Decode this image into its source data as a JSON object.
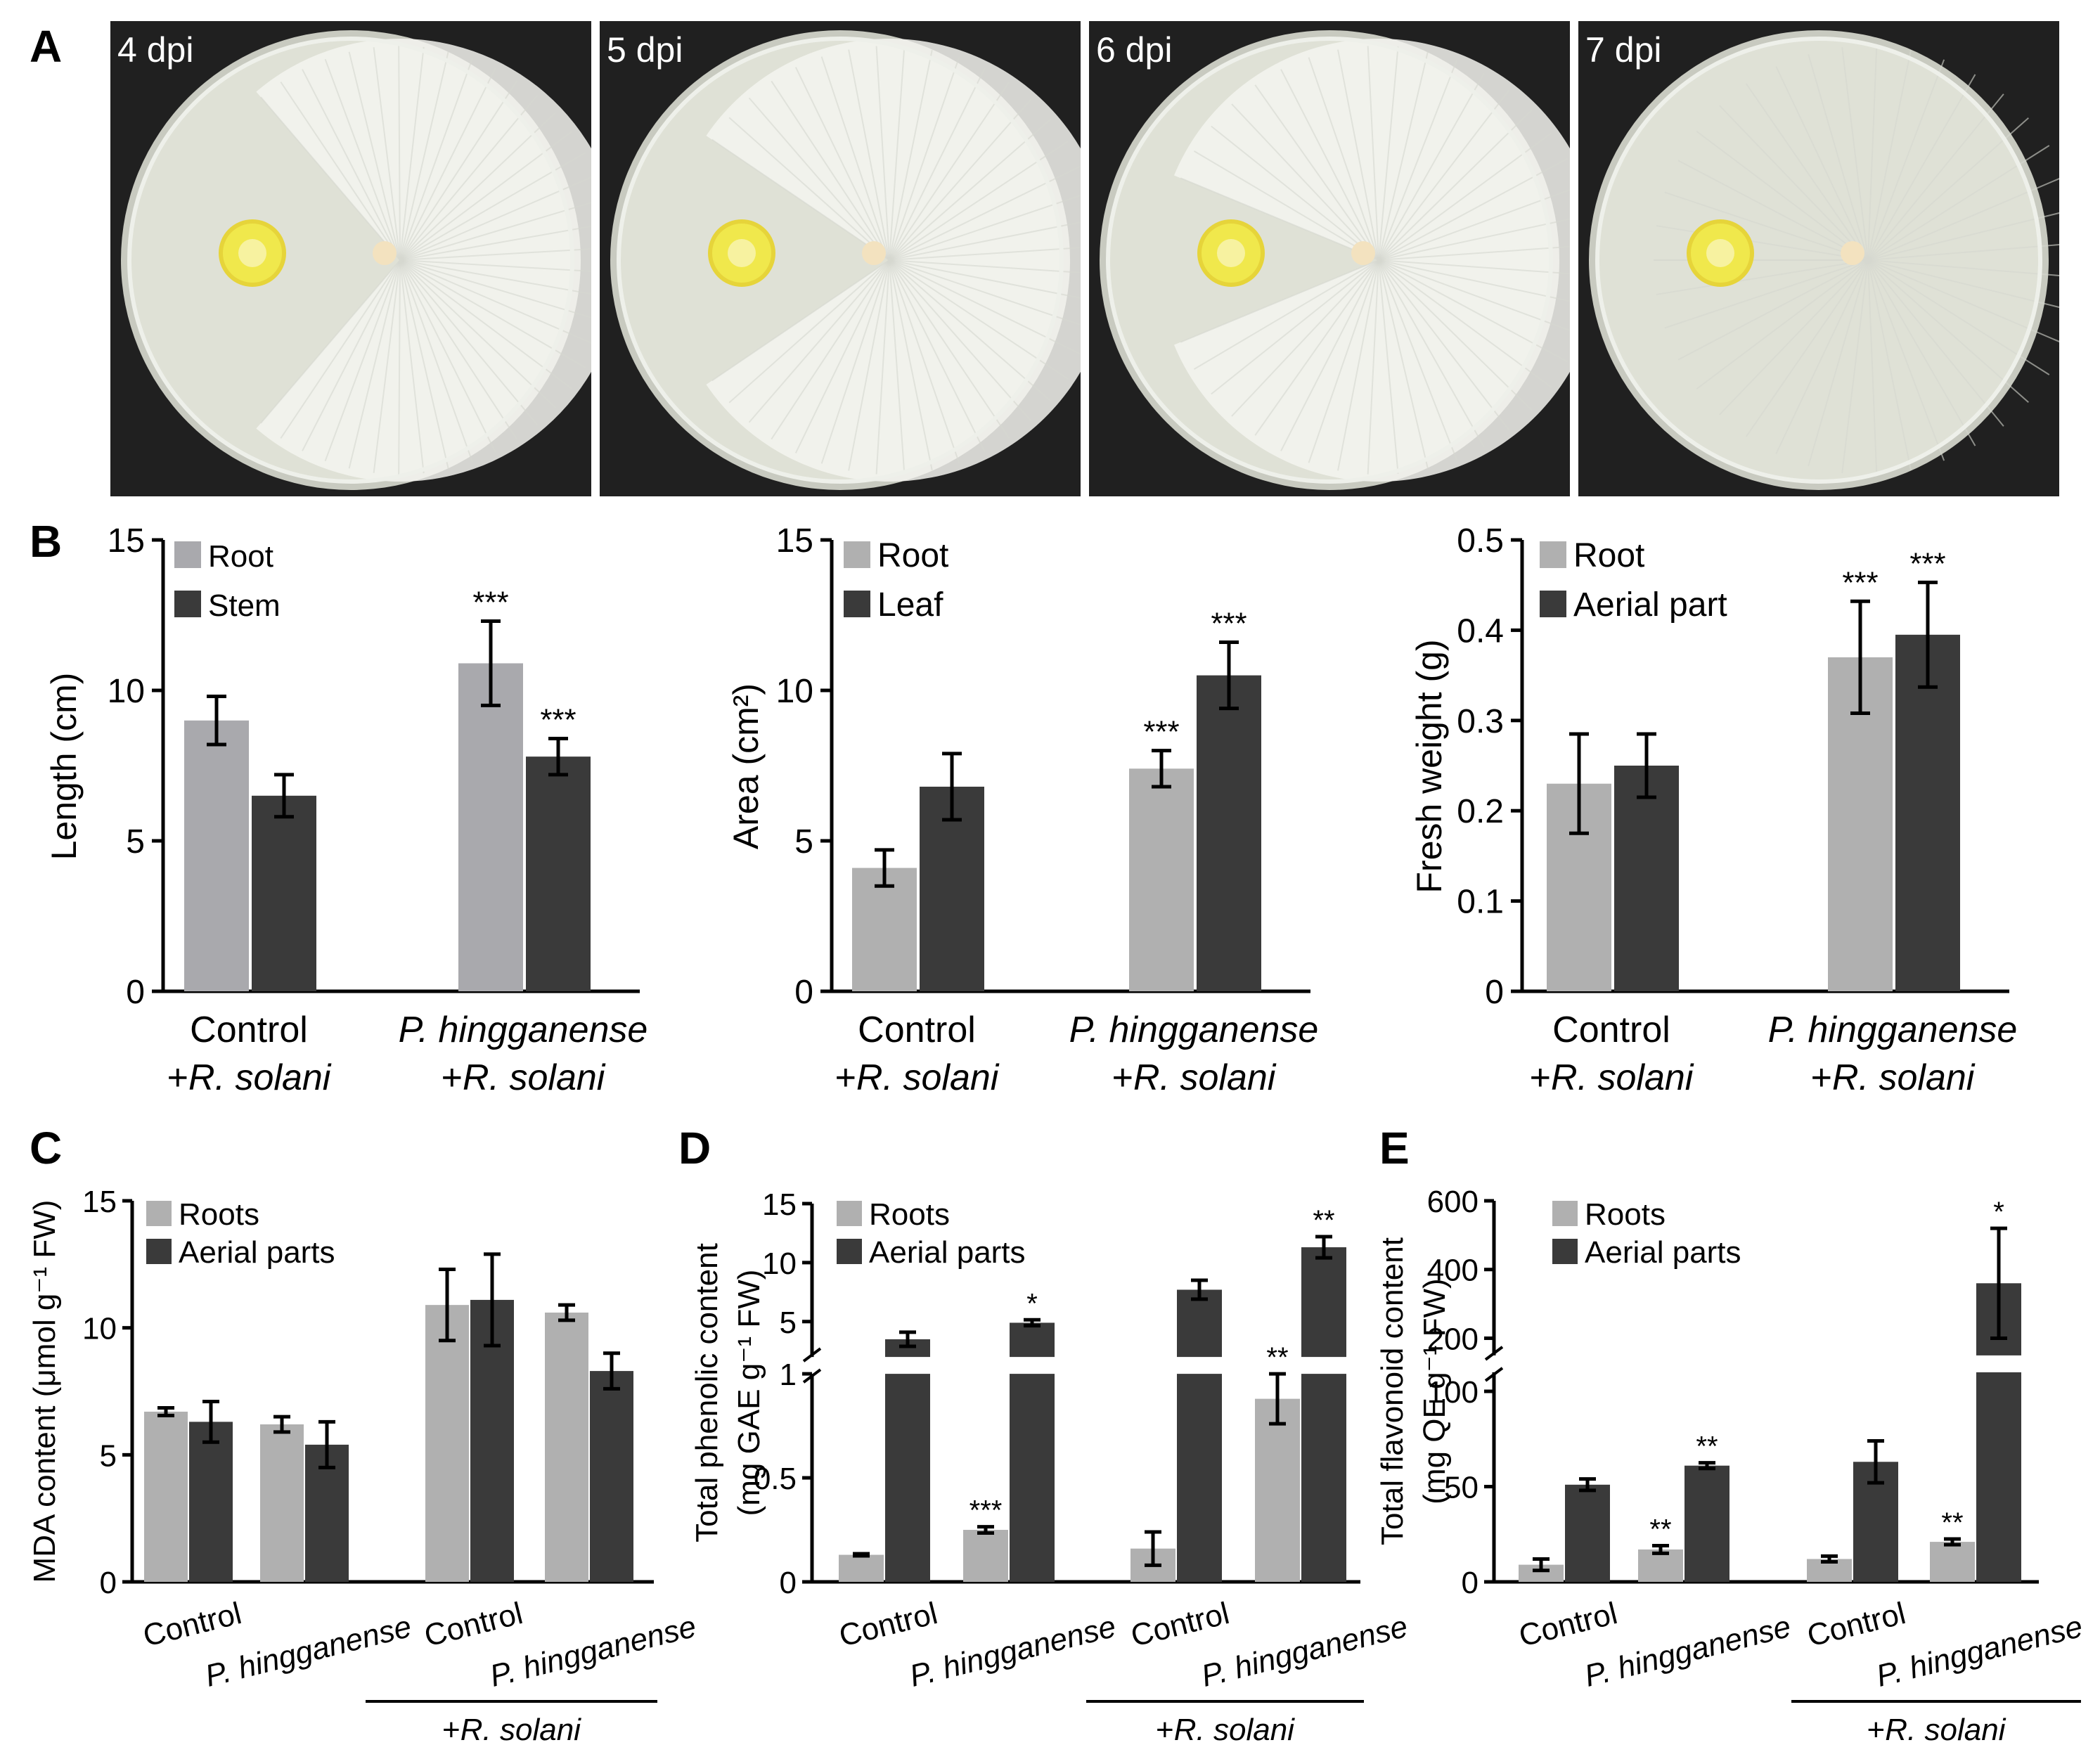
{
  "panel_labels": [
    "A",
    "B",
    "C",
    "D",
    "E"
  ],
  "panel_a": {
    "photos": [
      {
        "label": "4 dpi",
        "mycelium_sweep": 0.45
      },
      {
        "label": "5 dpi",
        "mycelium_sweep": 0.62
      },
      {
        "label": "6 dpi",
        "mycelium_sweep": 0.75
      },
      {
        "label": "7 dpi",
        "mycelium_sweep": 1.0
      }
    ],
    "colors": {
      "plate": "#dfe1d6",
      "colony": "#f0e84c",
      "mycelium": "#f4f4f0",
      "background": "#202020"
    }
  },
  "colors": {
    "root": "#a9a9ad",
    "stem": "#3a3a3a",
    "bar_light": "#b0b0b0",
    "bar_dark": "#3a3a3a"
  },
  "chart_data": [
    {
      "id": "B1",
      "type": "bar",
      "categories": [
        [
          "Control",
          "+R. solani"
        ],
        [
          "P. hingganense",
          "+R. solani"
        ]
      ],
      "ylabel": "Length (cm)",
      "ylim": [
        0,
        15
      ],
      "yticks": [
        "0",
        "5",
        "10",
        "15"
      ],
      "legend": "top-left",
      "series": [
        {
          "name": "Root",
          "values": [
            9.0,
            10.9
          ],
          "errors": [
            0.8,
            1.4
          ],
          "sig": [
            "",
            "***"
          ]
        },
        {
          "name": "Stem",
          "values": [
            6.5,
            7.8
          ],
          "errors": [
            0.7,
            0.6
          ],
          "sig": [
            "",
            "***"
          ]
        }
      ]
    },
    {
      "id": "B2",
      "type": "bar",
      "categories": [
        [
          "Control",
          "+R. solani"
        ],
        [
          "P. hingganense",
          "+R. solani"
        ]
      ],
      "ylabel": "Area (cm²)",
      "ylim": [
        0,
        15
      ],
      "yticks": [
        "0",
        "5",
        "10",
        "15"
      ],
      "legend": "top-left",
      "series": [
        {
          "name": "Root",
          "values": [
            4.1,
            7.4
          ],
          "errors": [
            0.6,
            0.6
          ],
          "sig": [
            "",
            "***"
          ]
        },
        {
          "name": "Leaf",
          "values": [
            6.8,
            10.5
          ],
          "errors": [
            1.1,
            1.1
          ],
          "sig": [
            "",
            "***"
          ]
        }
      ]
    },
    {
      "id": "B3",
      "type": "bar",
      "categories": [
        [
          "Control",
          "+R. solani"
        ],
        [
          "P. hingganense",
          "+R. solani"
        ]
      ],
      "ylabel": "Fresh weight (g)",
      "ylim": [
        0,
        0.5
      ],
      "yticks": [
        "0",
        "0.1",
        "0.2",
        "0.3",
        "0.4",
        "0.5"
      ],
      "legend": "top-left",
      "series": [
        {
          "name": "Root",
          "values": [
            0.23,
            0.37
          ],
          "errors": [
            0.055,
            0.062
          ],
          "sig": [
            "",
            "***"
          ]
        },
        {
          "name": "Aerial part",
          "values": [
            0.25,
            0.395
          ],
          "errors": [
            0.035,
            0.058
          ],
          "sig": [
            "",
            "***"
          ]
        }
      ]
    },
    {
      "id": "C",
      "type": "bar",
      "categories": [
        "Control",
        "P. hingganense",
        "Control",
        "P. hingganense"
      ],
      "group_label": "+R. solani",
      "ylabel": "MDA content (μmol g⁻¹ FW)",
      "ylim": [
        0,
        15
      ],
      "yticks": [
        "0",
        "5",
        "10",
        "15"
      ],
      "legend": "top-left",
      "series": [
        {
          "name": "Roots",
          "values": [
            6.7,
            6.2,
            10.9,
            10.6
          ],
          "errors": [
            0.15,
            0.3,
            1.4,
            0.3
          ],
          "sig": [
            "",
            "",
            "",
            ""
          ]
        },
        {
          "name": "Aerial parts",
          "values": [
            6.3,
            5.4,
            11.1,
            8.3
          ],
          "errors": [
            0.8,
            0.9,
            1.8,
            0.7
          ],
          "sig": [
            "",
            "",
            "",
            ""
          ]
        }
      ]
    },
    {
      "id": "D",
      "type": "bar",
      "categories": [
        "Control",
        "P. hingganense",
        "Control",
        "P. hingganense"
      ],
      "group_label": "+R. solani",
      "ylabel": "Total phenolic content",
      "ylabel2": "(mg GAE g⁻¹ FW)",
      "broken_axis": {
        "lower": [
          0,
          1
        ],
        "upper": [
          2,
          15
        ]
      },
      "yticks_lower": [
        "0",
        "0.5",
        "1"
      ],
      "yticks_upper": [
        "5",
        "10",
        "15"
      ],
      "legend": "top-left",
      "series": [
        {
          "name": "Roots",
          "values": [
            0.13,
            0.25,
            0.16,
            0.88
          ],
          "errors": [
            0.005,
            0.015,
            0.08,
            0.12
          ],
          "sig": [
            "",
            "***",
            "",
            "**"
          ]
        },
        {
          "name": "Aerial parts",
          "values": [
            3.5,
            4.9,
            7.7,
            11.3
          ],
          "errors": [
            0.6,
            0.25,
            0.8,
            0.9
          ],
          "sig": [
            "",
            "*",
            "",
            "**"
          ]
        }
      ]
    },
    {
      "id": "E",
      "type": "bar",
      "categories": [
        "Control",
        "P. hingganense",
        "Control",
        "P. hingganense"
      ],
      "group_label": "+R. solani",
      "ylabel": "Total flavonoid content",
      "ylabel2": "(mg QE g⁻¹ FW)",
      "broken_axis": {
        "lower": [
          0,
          110
        ],
        "upper": [
          150,
          600
        ]
      },
      "yticks_lower": [
        "0",
        "50",
        "100"
      ],
      "yticks_upper": [
        "200",
        "400",
        "600"
      ],
      "legend": "top-left",
      "series": [
        {
          "name": "Roots",
          "values": [
            9,
            17,
            12,
            21
          ],
          "errors": [
            3,
            2,
            1.5,
            1.5
          ],
          "sig": [
            "",
            "**",
            "",
            "**"
          ]
        },
        {
          "name": "Aerial parts",
          "values": [
            51,
            61,
            63,
            360
          ],
          "errors": [
            3,
            1.5,
            11,
            160
          ],
          "sig": [
            "",
            "**",
            "",
            "*"
          ]
        }
      ]
    }
  ]
}
